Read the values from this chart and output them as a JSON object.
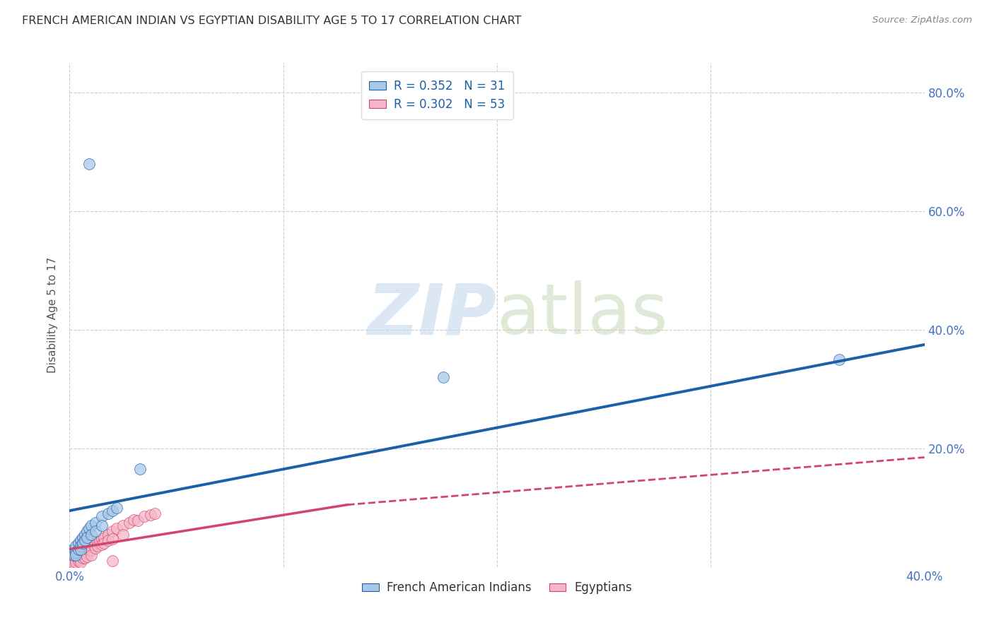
{
  "title": "FRENCH AMERICAN INDIAN VS EGYPTIAN DISABILITY AGE 5 TO 17 CORRELATION CHART",
  "source": "Source: ZipAtlas.com",
  "ylabel": "Disability Age 5 to 17",
  "watermark_zip": "ZIP",
  "watermark_atlas": "atlas",
  "xlim": [
    0.0,
    0.4
  ],
  "ylim": [
    0.0,
    0.85
  ],
  "xticks": [
    0.0,
    0.1,
    0.2,
    0.3,
    0.4
  ],
  "yticks": [
    0.0,
    0.2,
    0.4,
    0.6,
    0.8
  ],
  "right_ytick_labels": [
    "",
    "20.0%",
    "40.0%",
    "60.0%",
    "80.0%"
  ],
  "xtick_labels": [
    "0.0%",
    "",
    "",
    "",
    "40.0%"
  ],
  "blue_R": 0.352,
  "blue_N": 31,
  "pink_R": 0.302,
  "pink_N": 53,
  "blue_fill": "#a8c8e8",
  "pink_fill": "#f4b8c8",
  "blue_line_color": "#1a5fa8",
  "pink_line_color": "#d44470",
  "blue_scatter": [
    [
      0.001,
      0.025
    ],
    [
      0.002,
      0.03
    ],
    [
      0.002,
      0.02
    ],
    [
      0.003,
      0.035
    ],
    [
      0.003,
      0.025
    ],
    [
      0.003,
      0.02
    ],
    [
      0.004,
      0.04
    ],
    [
      0.004,
      0.03
    ],
    [
      0.005,
      0.045
    ],
    [
      0.005,
      0.035
    ],
    [
      0.005,
      0.03
    ],
    [
      0.006,
      0.05
    ],
    [
      0.006,
      0.04
    ],
    [
      0.007,
      0.055
    ],
    [
      0.007,
      0.045
    ],
    [
      0.008,
      0.06
    ],
    [
      0.008,
      0.05
    ],
    [
      0.009,
      0.065
    ],
    [
      0.01,
      0.07
    ],
    [
      0.01,
      0.055
    ],
    [
      0.012,
      0.075
    ],
    [
      0.012,
      0.06
    ],
    [
      0.015,
      0.085
    ],
    [
      0.015,
      0.07
    ],
    [
      0.018,
      0.09
    ],
    [
      0.02,
      0.095
    ],
    [
      0.022,
      0.1
    ],
    [
      0.033,
      0.165
    ],
    [
      0.009,
      0.68
    ],
    [
      0.175,
      0.32
    ],
    [
      0.36,
      0.35
    ]
  ],
  "pink_scatter": [
    [
      0.001,
      0.01
    ],
    [
      0.001,
      0.008
    ],
    [
      0.002,
      0.015
    ],
    [
      0.002,
      0.01
    ],
    [
      0.002,
      0.007
    ],
    [
      0.003,
      0.018
    ],
    [
      0.003,
      0.012
    ],
    [
      0.003,
      0.008
    ],
    [
      0.004,
      0.02
    ],
    [
      0.004,
      0.015
    ],
    [
      0.004,
      0.01
    ],
    [
      0.005,
      0.022
    ],
    [
      0.005,
      0.018
    ],
    [
      0.005,
      0.012
    ],
    [
      0.005,
      0.008
    ],
    [
      0.006,
      0.025
    ],
    [
      0.006,
      0.02
    ],
    [
      0.006,
      0.015
    ],
    [
      0.007,
      0.028
    ],
    [
      0.007,
      0.022
    ],
    [
      0.007,
      0.015
    ],
    [
      0.008,
      0.03
    ],
    [
      0.008,
      0.025
    ],
    [
      0.008,
      0.018
    ],
    [
      0.009,
      0.032
    ],
    [
      0.009,
      0.028
    ],
    [
      0.01,
      0.035
    ],
    [
      0.01,
      0.028
    ],
    [
      0.01,
      0.02
    ],
    [
      0.011,
      0.038
    ],
    [
      0.012,
      0.04
    ],
    [
      0.012,
      0.032
    ],
    [
      0.013,
      0.042
    ],
    [
      0.013,
      0.035
    ],
    [
      0.014,
      0.045
    ],
    [
      0.015,
      0.048
    ],
    [
      0.015,
      0.038
    ],
    [
      0.016,
      0.05
    ],
    [
      0.016,
      0.04
    ],
    [
      0.018,
      0.055
    ],
    [
      0.018,
      0.045
    ],
    [
      0.02,
      0.06
    ],
    [
      0.02,
      0.048
    ],
    [
      0.022,
      0.065
    ],
    [
      0.025,
      0.07
    ],
    [
      0.025,
      0.055
    ],
    [
      0.028,
      0.075
    ],
    [
      0.03,
      0.08
    ],
    [
      0.032,
      0.078
    ],
    [
      0.035,
      0.085
    ],
    [
      0.038,
      0.088
    ],
    [
      0.04,
      0.09
    ],
    [
      0.02,
      0.01
    ]
  ],
  "blue_line": {
    "x0": 0.0,
    "y0": 0.095,
    "x1": 0.4,
    "y1": 0.375
  },
  "pink_solid_line": {
    "x0": 0.0,
    "y0": 0.03,
    "x1": 0.13,
    "y1": 0.105
  },
  "pink_dashed_line": {
    "x0": 0.13,
    "y0": 0.105,
    "x1": 0.4,
    "y1": 0.185
  },
  "grid_color": "#cccccc",
  "bg_color": "#ffffff",
  "axis_color": "#4472c4",
  "title_color": "#333333"
}
